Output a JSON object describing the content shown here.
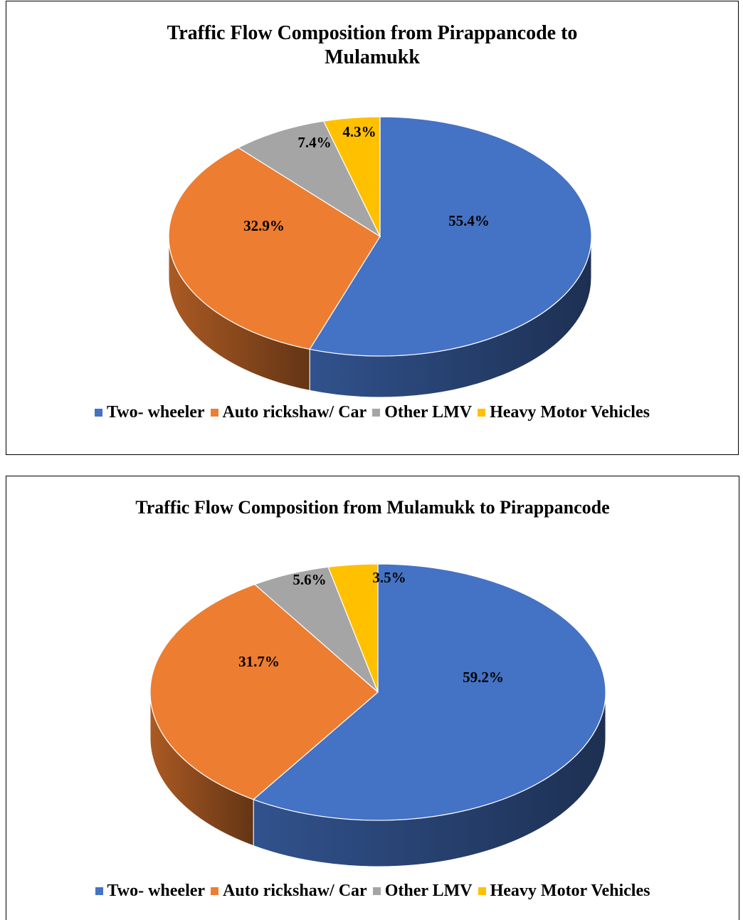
{
  "chart_data": [
    {
      "type": "pie",
      "title": "Traffic Flow Composition from Pirappancode to Mulamukk",
      "categories": [
        "Two- wheeler",
        "Auto rickshaw/ Car",
        "Other LMV",
        "Heavy Motor Vehicles"
      ],
      "values": [
        55.4,
        32.9,
        7.4,
        4.3
      ],
      "data_labels": [
        "55.4%",
        "32.9%",
        "7.4%",
        "4.3%"
      ],
      "colors": [
        "#4472C4",
        "#ED7D31",
        "#A5A5A5",
        "#FFC000"
      ],
      "style": "3d",
      "legend_position": "bottom"
    },
    {
      "type": "pie",
      "title": "Traffic Flow Composition from Mulamukk to Pirappancode",
      "categories": [
        "Two- wheeler",
        "Auto rickshaw/ Car",
        "Other LMV",
        "Heavy Motor Vehicles"
      ],
      "values": [
        59.2,
        31.7,
        5.6,
        3.5
      ],
      "data_labels": [
        "59.2%",
        "31.7%",
        "5.6%",
        "3.5%"
      ],
      "colors": [
        "#4472C4",
        "#ED7D31",
        "#A5A5A5",
        "#FFC000"
      ],
      "style": "3d",
      "legend_position": "bottom"
    }
  ]
}
